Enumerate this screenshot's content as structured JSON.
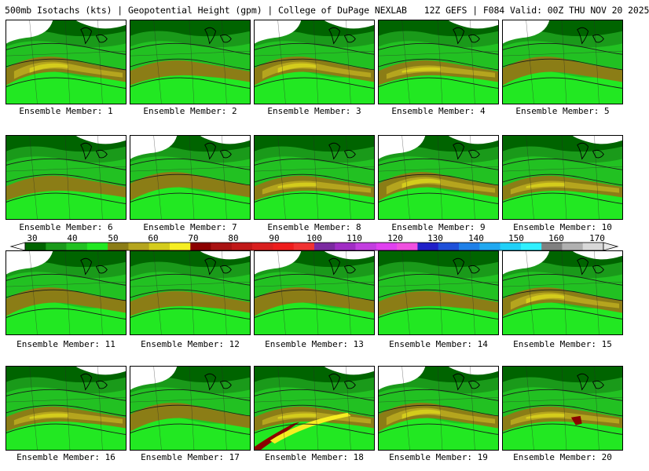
{
  "header": {
    "left": "500mb Isotachs (kts) | Geopotential Height (gpm) | College of DuPage NEXLAB",
    "right": "12Z GEFS | F084 Valid: 00Z THU NOV 20 2025"
  },
  "colorbar": {
    "ticks": [
      "30",
      "40",
      "50",
      "60",
      "70",
      "80",
      "90",
      "100",
      "110",
      "120",
      "130",
      "140",
      "150",
      "160",
      "170"
    ],
    "colors": [
      "#006400",
      "#1a9a1a",
      "#22c122",
      "#22e822",
      "#8b7d16",
      "#b5a51e",
      "#d4cc1c",
      "#f6ee21",
      "#8b0000",
      "#a81212",
      "#c01818",
      "#d81e1e",
      "#ee1c1c",
      "#f03232",
      "#7b2aa0",
      "#a02cc4",
      "#c23ee0",
      "#e040f0",
      "#f050e0",
      "#2020c8",
      "#1e50d8",
      "#1e80e8",
      "#20a8f0",
      "#20d0f8",
      "#30f0ff",
      "#808080",
      "#b0b0b0",
      "#d8d8d8"
    ]
  },
  "members": [
    {
      "label": "Ensemble Member: 1",
      "level": 2
    },
    {
      "label": "Ensemble Member: 2",
      "level": 1
    },
    {
      "label": "Ensemble Member: 3",
      "level": 2
    },
    {
      "label": "Ensemble Member: 4",
      "level": 2
    },
    {
      "label": "Ensemble Member: 5",
      "level": 1
    },
    {
      "label": "Ensemble Member: 6",
      "level": 1
    },
    {
      "label": "Ensemble Member: 7",
      "level": 1
    },
    {
      "label": "Ensemble Member: 8",
      "level": 2
    },
    {
      "label": "Ensemble Member: 9",
      "level": 2
    },
    {
      "label": "Ensemble Member: 10",
      "level": 2
    },
    {
      "label": "Ensemble Member: 11",
      "level": 1
    },
    {
      "label": "Ensemble Member: 12",
      "level": 1
    },
    {
      "label": "Ensemble Member: 13",
      "level": 1
    },
    {
      "label": "Ensemble Member: 14",
      "level": 1
    },
    {
      "label": "Ensemble Member: 15",
      "level": 2
    },
    {
      "label": "Ensemble Member: 16",
      "level": 2
    },
    {
      "label": "Ensemble Member: 17",
      "level": 1
    },
    {
      "label": "Ensemble Member: 18",
      "level": 3
    },
    {
      "label": "Ensemble Member: 19",
      "level": 2
    },
    {
      "label": "Ensemble Member: 20",
      "level": 3
    }
  ]
}
